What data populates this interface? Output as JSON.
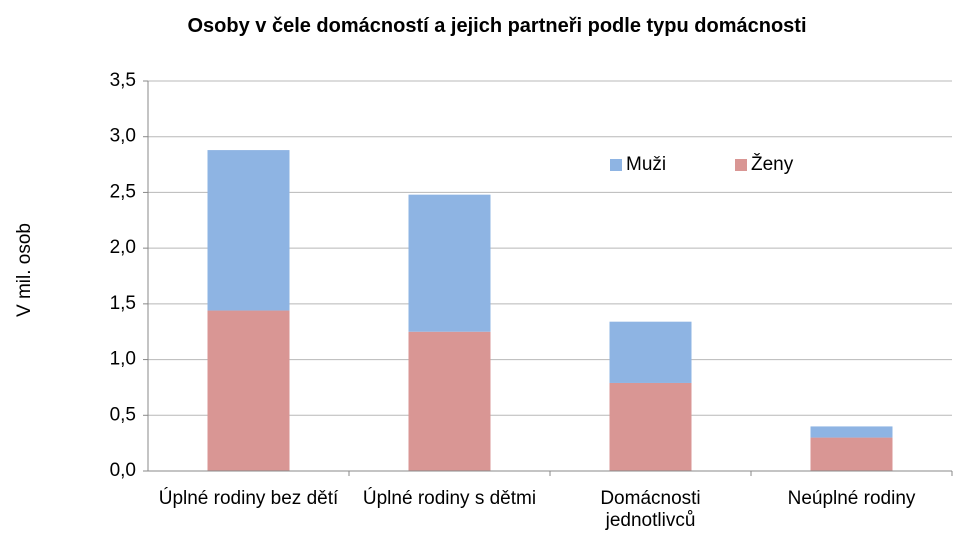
{
  "chart_data": {
    "type": "stacked_bar",
    "title": "Osoby v čele domácností a jejich partneři podle typu domácnosti",
    "y_label": "V mil. osob",
    "categories": [
      "Úplné rodiny bez dětí",
      "Úplné rodiny s dětmi",
      "Domácnosti jednotlivců",
      "Neúplné rodiny"
    ],
    "series": [
      {
        "name": "Ženy",
        "color": "#d99694",
        "values": [
          1.44,
          1.25,
          0.79,
          0.3
        ]
      },
      {
        "name": "Muži",
        "color": "#8eb4e3",
        "values": [
          1.44,
          1.23,
          0.55,
          0.1
        ]
      }
    ],
    "ylim": [
      0,
      3.5
    ],
    "yticks": [
      {
        "value": 0,
        "label": "0,0"
      },
      {
        "value": 0.5,
        "label": "0,5"
      },
      {
        "value": 1,
        "label": "1,0"
      },
      {
        "value": 1.5,
        "label": "1,5"
      },
      {
        "value": 2,
        "label": "2,0"
      },
      {
        "value": 2.5,
        "label": "2,5"
      },
      {
        "value": 3,
        "label": "3,0"
      },
      {
        "value": 3.5,
        "label": "3,5"
      }
    ],
    "grid": true
  }
}
